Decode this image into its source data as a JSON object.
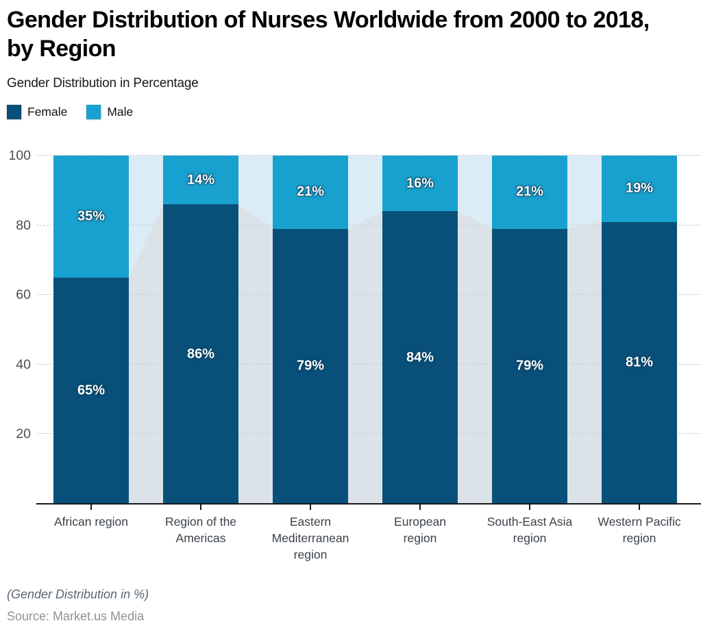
{
  "header": {
    "title": "Gender Distribution of Nurses Worldwide from 2000 to 2018, by Region",
    "title_lines": [
      "Gender Distribution of Nurses Worldwide from 2000 to 2018,",
      "by Region"
    ],
    "subtitle": "Gender Distribution in Percentage"
  },
  "legend": {
    "items": [
      {
        "label": "Female",
        "color": "#08507a"
      },
      {
        "label": "Male",
        "color": "#18a1ce"
      }
    ]
  },
  "chart_data": {
    "type": "bar",
    "stacked": true,
    "title": "Gender Distribution of Nurses Worldwide from 2000 to 2018, by Region",
    "subtitle": "Gender Distribution in Percentage",
    "categories": [
      "African region",
      "Region of the Americas",
      "Eastern Mediterranean region",
      "European region",
      "South-East Asia region",
      "Western Pacific region"
    ],
    "category_label_lines": [
      [
        "African region"
      ],
      [
        "Region of the",
        "Americas"
      ],
      [
        "Eastern",
        "Mediterranean",
        "region"
      ],
      [
        "European",
        "region"
      ],
      [
        "South-East Asia",
        "region"
      ],
      [
        "Western Pacific",
        "region"
      ]
    ],
    "series": [
      {
        "name": "Female",
        "color": "#08507a",
        "values": [
          65,
          86,
          79,
          84,
          79,
          81
        ]
      },
      {
        "name": "Male",
        "color": "#18a1ce",
        "values": [
          35,
          14,
          21,
          16,
          21,
          19
        ]
      }
    ],
    "value_suffix": "%",
    "xlabel": "",
    "ylabel": "",
    "ylim": [
      0,
      100
    ],
    "yticks": [
      20,
      40,
      60,
      80,
      100
    ],
    "grid": true,
    "legend_position": "top-left",
    "background_band_color": "#dbecf6",
    "background_area_color": "#dbe3e9",
    "gridline_color": "#c7ccd1",
    "axis_color": "#17191c"
  },
  "footer": {
    "note": "(Gender Distribution in %)",
    "source": "Source: Market.us Media"
  }
}
